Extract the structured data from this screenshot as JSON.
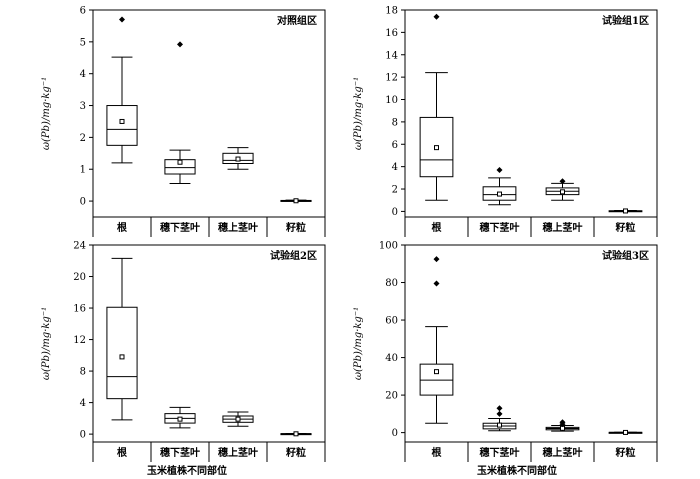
{
  "x_axis_title": "玉米植株不同部位",
  "y_axis_title": "ω(Pb)/mg·kg⁻¹",
  "chart_data": [
    {
      "type": "box",
      "title": "对照组区",
      "categories": [
        "根",
        "穗下茎叶",
        "穗上茎叶",
        "籽粒"
      ],
      "ylim": [
        -0.5,
        6
      ],
      "yticks": [
        0,
        1,
        2,
        3,
        4,
        5,
        6
      ],
      "boxes": [
        {
          "min": 1.2,
          "q1": 1.75,
          "median": 2.25,
          "q3": 3.0,
          "max": 4.52,
          "mean": 2.5,
          "outliers": [
            5.7
          ]
        },
        {
          "min": 0.55,
          "q1": 0.85,
          "median": 1.05,
          "q3": 1.3,
          "max": 1.6,
          "mean": 1.22,
          "outliers": [
            4.92
          ]
        },
        {
          "min": 1.0,
          "q1": 1.18,
          "median": 1.28,
          "q3": 1.5,
          "max": 1.68,
          "mean": 1.32,
          "outliers": []
        },
        {
          "min": 0.0,
          "q1": 0.0,
          "median": 0.01,
          "q3": 0.02,
          "max": 0.03,
          "mean": 0.01,
          "outliers": []
        }
      ]
    },
    {
      "type": "box",
      "title": "试验组1区",
      "categories": [
        "根",
        "穗下茎叶",
        "穗上茎叶",
        "籽粒"
      ],
      "ylim": [
        -0.5,
        18
      ],
      "yticks": [
        0,
        2,
        4,
        6,
        8,
        10,
        12,
        14,
        16,
        18
      ],
      "boxes": [
        {
          "min": 1.0,
          "q1": 3.1,
          "median": 4.6,
          "q3": 8.4,
          "max": 12.4,
          "mean": 5.7,
          "outliers": [
            17.4
          ]
        },
        {
          "min": 0.6,
          "q1": 1.0,
          "median": 1.5,
          "q3": 2.2,
          "max": 3.0,
          "mean": 1.55,
          "outliers": [
            3.7
          ]
        },
        {
          "min": 1.0,
          "q1": 1.5,
          "median": 1.8,
          "q3": 2.1,
          "max": 2.5,
          "mean": 1.75,
          "outliers": [
            2.7
          ]
        },
        {
          "min": 0.0,
          "q1": 0.02,
          "median": 0.04,
          "q3": 0.06,
          "max": 0.08,
          "mean": 0.04,
          "outliers": []
        }
      ]
    },
    {
      "type": "box",
      "title": "试验组2区",
      "categories": [
        "根",
        "穗下茎叶",
        "穗上茎叶",
        "籽粒"
      ],
      "ylim": [
        -1,
        24
      ],
      "yticks": [
        0,
        4,
        8,
        12,
        16,
        20,
        24
      ],
      "boxes": [
        {
          "min": 1.8,
          "q1": 4.5,
          "median": 7.3,
          "q3": 16.1,
          "max": 22.3,
          "mean": 9.8,
          "outliers": []
        },
        {
          "min": 0.8,
          "q1": 1.4,
          "median": 2.0,
          "q3": 2.6,
          "max": 3.4,
          "mean": 1.9,
          "outliers": []
        },
        {
          "min": 1.0,
          "q1": 1.5,
          "median": 1.9,
          "q3": 2.3,
          "max": 2.8,
          "mean": 1.9,
          "outliers": []
        },
        {
          "min": 0.0,
          "q1": 0.02,
          "median": 0.04,
          "q3": 0.06,
          "max": 0.08,
          "mean": 0.04,
          "outliers": []
        }
      ]
    },
    {
      "type": "box",
      "title": "试验组3区",
      "categories": [
        "根",
        "穗下茎叶",
        "穗上茎叶",
        "籽粒"
      ],
      "ylim": [
        -5,
        100
      ],
      "yticks": [
        0,
        20,
        40,
        60,
        80,
        100
      ],
      "boxes": [
        {
          "min": 5.0,
          "q1": 20.0,
          "median": 28.0,
          "q3": 36.5,
          "max": 56.5,
          "mean": 32.5,
          "outliers": [
            79.5,
            92.5
          ]
        },
        {
          "min": 1.0,
          "q1": 2.0,
          "median": 3.5,
          "q3": 5.0,
          "max": 7.5,
          "mean": 4.0,
          "outliers": [
            10.0,
            13.0
          ]
        },
        {
          "min": 0.8,
          "q1": 1.5,
          "median": 2.2,
          "q3": 2.8,
          "max": 3.8,
          "mean": 2.3,
          "outliers": [
            4.5,
            5.5
          ]
        },
        {
          "min": 0.0,
          "q1": 0.05,
          "median": 0.1,
          "q3": 0.15,
          "max": 0.2,
          "mean": 0.1,
          "outliers": []
        }
      ]
    }
  ]
}
